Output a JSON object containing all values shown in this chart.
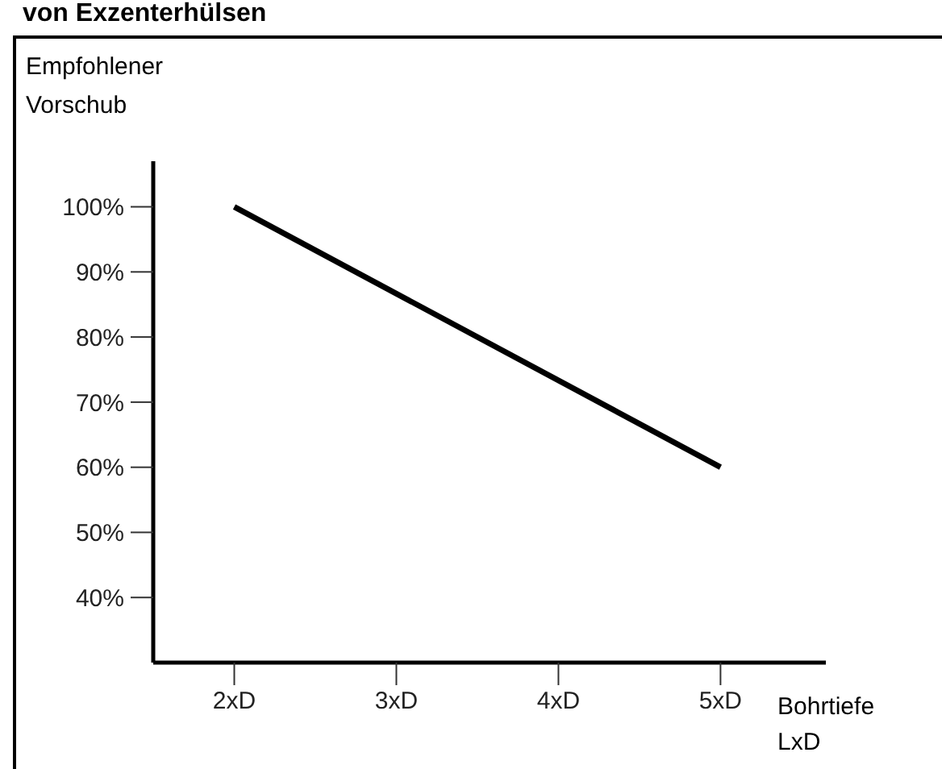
{
  "chart_data": {
    "type": "line",
    "title": "von Exzenterhülsen",
    "xlabel": "Bohrtiefe LxD",
    "ylabel": "Empfohlener Vorschub",
    "x": [
      2,
      5
    ],
    "series": [
      {
        "color": "#000000",
        "values": [
          100,
          60
        ]
      }
    ],
    "xlim": [
      1.5,
      5.65
    ],
    "xticks": [
      {
        "value": 2,
        "label": "2xD"
      },
      {
        "value": 3,
        "label": "3xD"
      },
      {
        "value": 4,
        "label": "4xD"
      },
      {
        "value": 5,
        "label": "5xD"
      }
    ],
    "ylim": [
      30,
      107
    ],
    "yticks": [
      {
        "value": 40,
        "label": "40%"
      },
      {
        "value": 50,
        "label": "50%"
      },
      {
        "value": 60,
        "label": "60%"
      },
      {
        "value": 70,
        "label": "70%"
      },
      {
        "value": 80,
        "label": "80%"
      },
      {
        "value": 90,
        "label": "90%"
      },
      {
        "value": 100,
        "label": "100%"
      }
    ],
    "grid": false,
    "legend": false,
    "marker": "none",
    "line_style": "solid"
  }
}
